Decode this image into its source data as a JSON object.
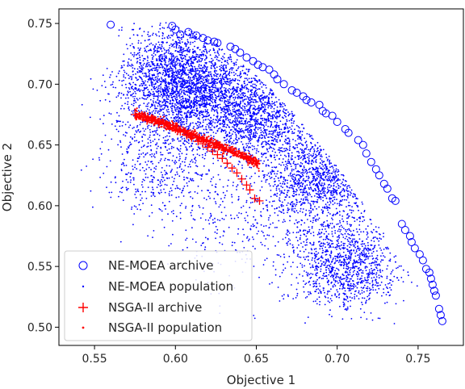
{
  "chart_data": {
    "type": "scatter",
    "xlabel": "Objective 1",
    "ylabel": "Objective 2",
    "xlim": [
      0.528,
      0.778
    ],
    "ylim": [
      0.485,
      0.762
    ],
    "xticks": [
      0.55,
      0.6,
      0.65,
      0.7,
      0.75
    ],
    "xtick_labels": [
      "0.55",
      "0.60",
      "0.65",
      "0.70",
      "0.75"
    ],
    "yticks": [
      0.5,
      0.55,
      0.6,
      0.65,
      0.7,
      0.75
    ],
    "ytick_labels": [
      "0.50",
      "0.55",
      "0.60",
      "0.65",
      "0.70",
      "0.75"
    ],
    "grid": false,
    "legend_position": "lower-left",
    "colors": {
      "nemoea": "#0000ff",
      "nsga": "#ff0000"
    },
    "series": [
      {
        "name": "NE-MOEA archive",
        "marker": "open-circle",
        "color": "#0000ff",
        "points": [
          [
            0.56,
            0.749
          ],
          [
            0.598,
            0.748
          ],
          [
            0.6,
            0.745
          ],
          [
            0.603,
            0.741
          ],
          [
            0.608,
            0.743
          ],
          [
            0.613,
            0.74
          ],
          [
            0.617,
            0.738
          ],
          [
            0.62,
            0.736
          ],
          [
            0.624,
            0.735
          ],
          [
            0.626,
            0.734
          ],
          [
            0.634,
            0.731
          ],
          [
            0.637,
            0.729
          ],
          [
            0.64,
            0.726
          ],
          [
            0.644,
            0.722
          ],
          [
            0.648,
            0.719
          ],
          [
            0.651,
            0.716
          ],
          [
            0.654,
            0.714
          ],
          [
            0.658,
            0.712
          ],
          [
            0.661,
            0.708
          ],
          [
            0.663,
            0.704
          ],
          [
            0.667,
            0.7
          ],
          [
            0.672,
            0.695
          ],
          [
            0.675,
            0.693
          ],
          [
            0.679,
            0.69
          ],
          [
            0.681,
            0.687
          ],
          [
            0.684,
            0.685
          ],
          [
            0.689,
            0.683
          ],
          [
            0.691,
            0.678
          ],
          [
            0.693,
            0.676
          ],
          [
            0.697,
            0.674
          ],
          [
            0.7,
            0.669
          ],
          [
            0.705,
            0.663
          ],
          [
            0.707,
            0.66
          ],
          [
            0.713,
            0.654
          ],
          [
            0.716,
            0.65
          ],
          [
            0.718,
            0.643
          ],
          [
            0.721,
            0.636
          ],
          [
            0.724,
            0.63
          ],
          [
            0.726,
            0.625
          ],
          [
            0.729,
            0.618
          ],
          [
            0.731,
            0.614
          ],
          [
            0.734,
            0.606
          ],
          [
            0.736,
            0.604
          ],
          [
            0.74,
            0.585
          ],
          [
            0.742,
            0.58
          ],
          [
            0.745,
            0.575
          ],
          [
            0.746,
            0.57
          ],
          [
            0.748,
            0.565
          ],
          [
            0.751,
            0.56
          ],
          [
            0.753,
            0.555
          ],
          [
            0.755,
            0.548
          ],
          [
            0.757,
            0.545
          ],
          [
            0.758,
            0.54
          ],
          [
            0.759,
            0.535
          ],
          [
            0.76,
            0.53
          ],
          [
            0.761,
            0.526
          ],
          [
            0.763,
            0.515
          ],
          [
            0.764,
            0.51
          ],
          [
            0.765,
            0.505
          ]
        ]
      },
      {
        "name": "NE-MOEA population",
        "marker": "dot",
        "color": "#0000ff"
      },
      {
        "name": "NSGA-II archive",
        "marker": "plus",
        "color": "#ff0000",
        "points": [
          [
            0.575,
            0.675
          ],
          [
            0.58,
            0.673
          ],
          [
            0.585,
            0.671
          ],
          [
            0.59,
            0.669
          ],
          [
            0.595,
            0.666
          ],
          [
            0.6,
            0.663
          ],
          [
            0.603,
            0.661
          ],
          [
            0.607,
            0.658
          ],
          [
            0.61,
            0.656
          ],
          [
            0.614,
            0.653
          ],
          [
            0.617,
            0.651
          ],
          [
            0.62,
            0.648
          ],
          [
            0.623,
            0.645
          ],
          [
            0.626,
            0.642
          ],
          [
            0.629,
            0.639
          ],
          [
            0.632,
            0.635
          ],
          [
            0.635,
            0.631
          ],
          [
            0.638,
            0.627
          ],
          [
            0.641,
            0.622
          ],
          [
            0.644,
            0.617
          ],
          [
            0.646,
            0.613
          ],
          [
            0.649,
            0.606
          ],
          [
            0.652,
            0.604
          ]
        ]
      },
      {
        "name": "NSGA-II population",
        "marker": "dot",
        "color": "#ff0000"
      }
    ]
  }
}
